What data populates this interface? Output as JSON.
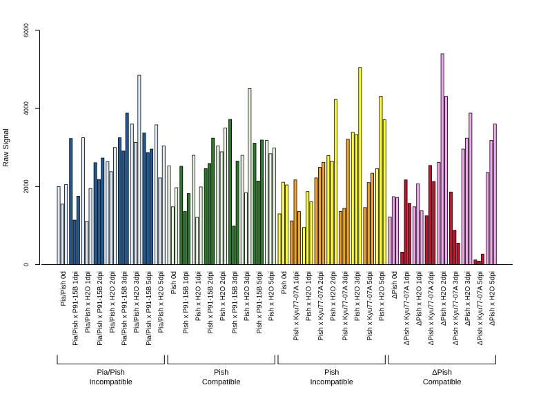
{
  "chart_data": {
    "type": "bar",
    "ylabel": "Raw Signal",
    "ylim": [
      0,
      6000
    ],
    "yticks": [
      "0",
      "2000",
      "4000",
      "6000"
    ],
    "groups": [
      {
        "label_lines": [
          "Pia/Pish",
          "Incompatible"
        ],
        "light_color": "#dce9f5",
        "dark_color": "#1f5b9a",
        "categories": [
          {
            "label": "Pia/Pish 0d",
            "dark": false,
            "values": [
              2000,
              1550,
              2050
            ]
          },
          {
            "label": "Pia/Pish x P91-15B 1dpi",
            "dark": true,
            "values": [
              3230,
              1140,
              1750
            ]
          },
          {
            "label": "Pia/Pish x H2O 1dpi",
            "dark": false,
            "values": [
              3250,
              1110,
              1950
            ]
          },
          {
            "label": "Pia/Pish x P91-15B 2dpi",
            "dark": true,
            "values": [
              2610,
              2180,
              2730
            ]
          },
          {
            "label": "Pia/Pish x H2O 2dpi",
            "dark": false,
            "values": [
              2640,
              2380,
              3000
            ]
          },
          {
            "label": "Pia/Pish x P91-15B 3dpi",
            "dark": true,
            "values": [
              3250,
              2910,
              3880
            ]
          },
          {
            "label": "Pia/Pish x H2O 3dpi",
            "dark": false,
            "values": [
              3600,
              3130,
              4850
            ]
          },
          {
            "label": "Pia/Pish x P91-15B 5dpi",
            "dark": true,
            "values": [
              3370,
              2870,
              2960
            ]
          },
          {
            "label": "Pia/Pish x H2O 5dpi",
            "dark": false,
            "values": [
              3580,
              2220,
              3040
            ]
          }
        ]
      },
      {
        "label_lines": [
          "Pish",
          "Compatible"
        ],
        "light_color": "#e8f4e2",
        "dark_color": "#2a7a2a",
        "categories": [
          {
            "label": "Pish 0d",
            "dark": false,
            "values": [
              2530,
              1480,
              1970
            ]
          },
          {
            "label": "Pish x P91-15B 1dpi",
            "dark": true,
            "values": [
              2520,
              1360,
              1820
            ]
          },
          {
            "label": "Pish x H2O 1dpi",
            "dark": false,
            "values": [
              2800,
              1210,
              1990
            ]
          },
          {
            "label": "Pish x P91-15B 2dpi",
            "dark": true,
            "values": [
              2460,
              2590,
              3240
            ]
          },
          {
            "label": "Pish x H2O 2dpi",
            "dark": false,
            "values": [
              3040,
              2890,
              3500
            ]
          },
          {
            "label": "Pish x P91-15B 3dpi",
            "dark": true,
            "values": [
              3720,
              990,
              2650
            ]
          },
          {
            "label": "Pish x H2O 3dpi",
            "dark": false,
            "values": [
              2800,
              1840,
              4510
            ]
          },
          {
            "label": "Pish x P91-15B 5dpi",
            "dark": true,
            "values": [
              3110,
              2140,
              3190
            ]
          },
          {
            "label": "Pish x H2O 5dpi",
            "dark": false,
            "values": [
              3180,
              2840,
              2990
            ]
          }
        ]
      },
      {
        "label_lines": [
          "Pish",
          "Incompatible"
        ],
        "light_color": "#ffff22",
        "dark_color": "#f5a21e",
        "categories": [
          {
            "label": "Pish 0d",
            "dark": false,
            "values": [
              1300,
              2110,
              2040
            ]
          },
          {
            "label": "Pish x Kyu77-07A 1dpi",
            "dark": true,
            "values": [
              1120,
              2170,
              1360
            ]
          },
          {
            "label": "Pish x H2O 1dpi",
            "dark": false,
            "values": [
              950,
              1870,
              1610
            ]
          },
          {
            "label": "Pish x Kyu77-07A 2dpi",
            "dark": true,
            "values": [
              2220,
              2490,
              2620
            ]
          },
          {
            "label": "Pish x H2O 2dpi",
            "dark": false,
            "values": [
              2790,
              2650,
              4230
            ]
          },
          {
            "label": "Pish x Kyu77-07A 3dpi",
            "dark": true,
            "values": [
              1360,
              1440,
              3210
            ]
          },
          {
            "label": "Pish x H2O 3dpi",
            "dark": false,
            "values": [
              3390,
              3330,
              5050
            ]
          },
          {
            "label": "Pish x Kyu77-07A 5dpi",
            "dark": true,
            "values": [
              1460,
              2100,
              2340
            ]
          },
          {
            "label": "Pish x H2O 5dpi",
            "dark": false,
            "values": [
              2460,
              4310,
              3710
            ]
          }
        ]
      },
      {
        "label_lines": [
          "ΔPish",
          "Compatible"
        ],
        "light_color": "#f2a6ee",
        "dark_color": "#c8102e",
        "categories": [
          {
            "label": "ΔPish 0d",
            "dark": false,
            "values": [
              1220,
              1740,
              1720
            ]
          },
          {
            "label": "ΔPish x Kyu77-07A 1dpi",
            "dark": true,
            "values": [
              320,
              2170,
              1570
            ]
          },
          {
            "label": "ΔPish x H2O 1dpi",
            "dark": false,
            "values": [
              1480,
              2070,
              1380
            ]
          },
          {
            "label": "ΔPish x Kyu77-07A 2dpi",
            "dark": true,
            "values": [
              1250,
              2540,
              2130
            ]
          },
          {
            "label": "ΔPish x H2O 2dpi",
            "dark": false,
            "values": [
              2620,
              5400,
              4310
            ]
          },
          {
            "label": "ΔPish x Kyu77-07A 3dpi",
            "dark": true,
            "values": [
              1860,
              880,
              550
            ]
          },
          {
            "label": "ΔPish x H2O 3dpi",
            "dark": false,
            "values": [
              2960,
              3240,
              3880
            ]
          },
          {
            "label": "ΔPish x Kyu77-07A 5dpi",
            "dark": true,
            "values": [
              120,
              90,
              270
            ]
          },
          {
            "label": "ΔPish x H2O 5dpi",
            "dark": false,
            "values": [
              2360,
              3180,
              3600
            ]
          }
        ]
      }
    ]
  }
}
